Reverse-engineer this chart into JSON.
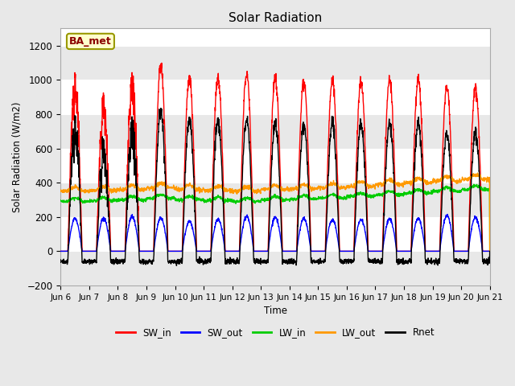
{
  "title": "Solar Radiation",
  "ylabel": "Solar Radiation (W/m2)",
  "xlabel": "Time",
  "ylim": [
    -200,
    1300
  ],
  "yticks": [
    -200,
    0,
    200,
    400,
    600,
    800,
    1000,
    1200
  ],
  "fig_bg_color": "#e8e8e8",
  "plot_bg_color": "#ffffff",
  "annotation_text": "BA_met",
  "annotation_color": "#8b0000",
  "annotation_bg": "#ffffcc",
  "series": {
    "SW_in": {
      "color": "#ff0000",
      "lw": 1.0
    },
    "SW_out": {
      "color": "#0000ff",
      "lw": 1.0
    },
    "LW_in": {
      "color": "#00cc00",
      "lw": 1.0
    },
    "LW_out": {
      "color": "#ff9900",
      "lw": 1.0
    },
    "Rnet": {
      "color": "#000000",
      "lw": 1.0
    }
  },
  "x_tick_labels": [
    "Jun 6",
    "Jun 7",
    "Jun 8",
    "Jun 9",
    "Jun 10",
    "Jun 11",
    "Jun 12",
    "Jun 13",
    "Jun 14",
    "Jun 15",
    "Jun 16",
    "Jun 17",
    "Jun 18",
    "Jun 19",
    "Jun 20",
    "Jun 21"
  ],
  "n_days": 15,
  "pts_per_day": 144,
  "sw_in_peaks": [
    960,
    830,
    950,
    1080,
    1010,
    1010,
    1040,
    1010,
    1000,
    1000,
    990,
    1000,
    1000,
    960,
    960
  ],
  "lw_in_base": [
    290,
    295,
    300,
    310,
    300,
    295,
    290,
    300,
    305,
    310,
    320,
    330,
    340,
    350,
    360
  ],
  "lw_out_base": [
    350,
    355,
    360,
    370,
    360,
    355,
    350,
    360,
    365,
    370,
    380,
    390,
    400,
    410,
    420
  ]
}
